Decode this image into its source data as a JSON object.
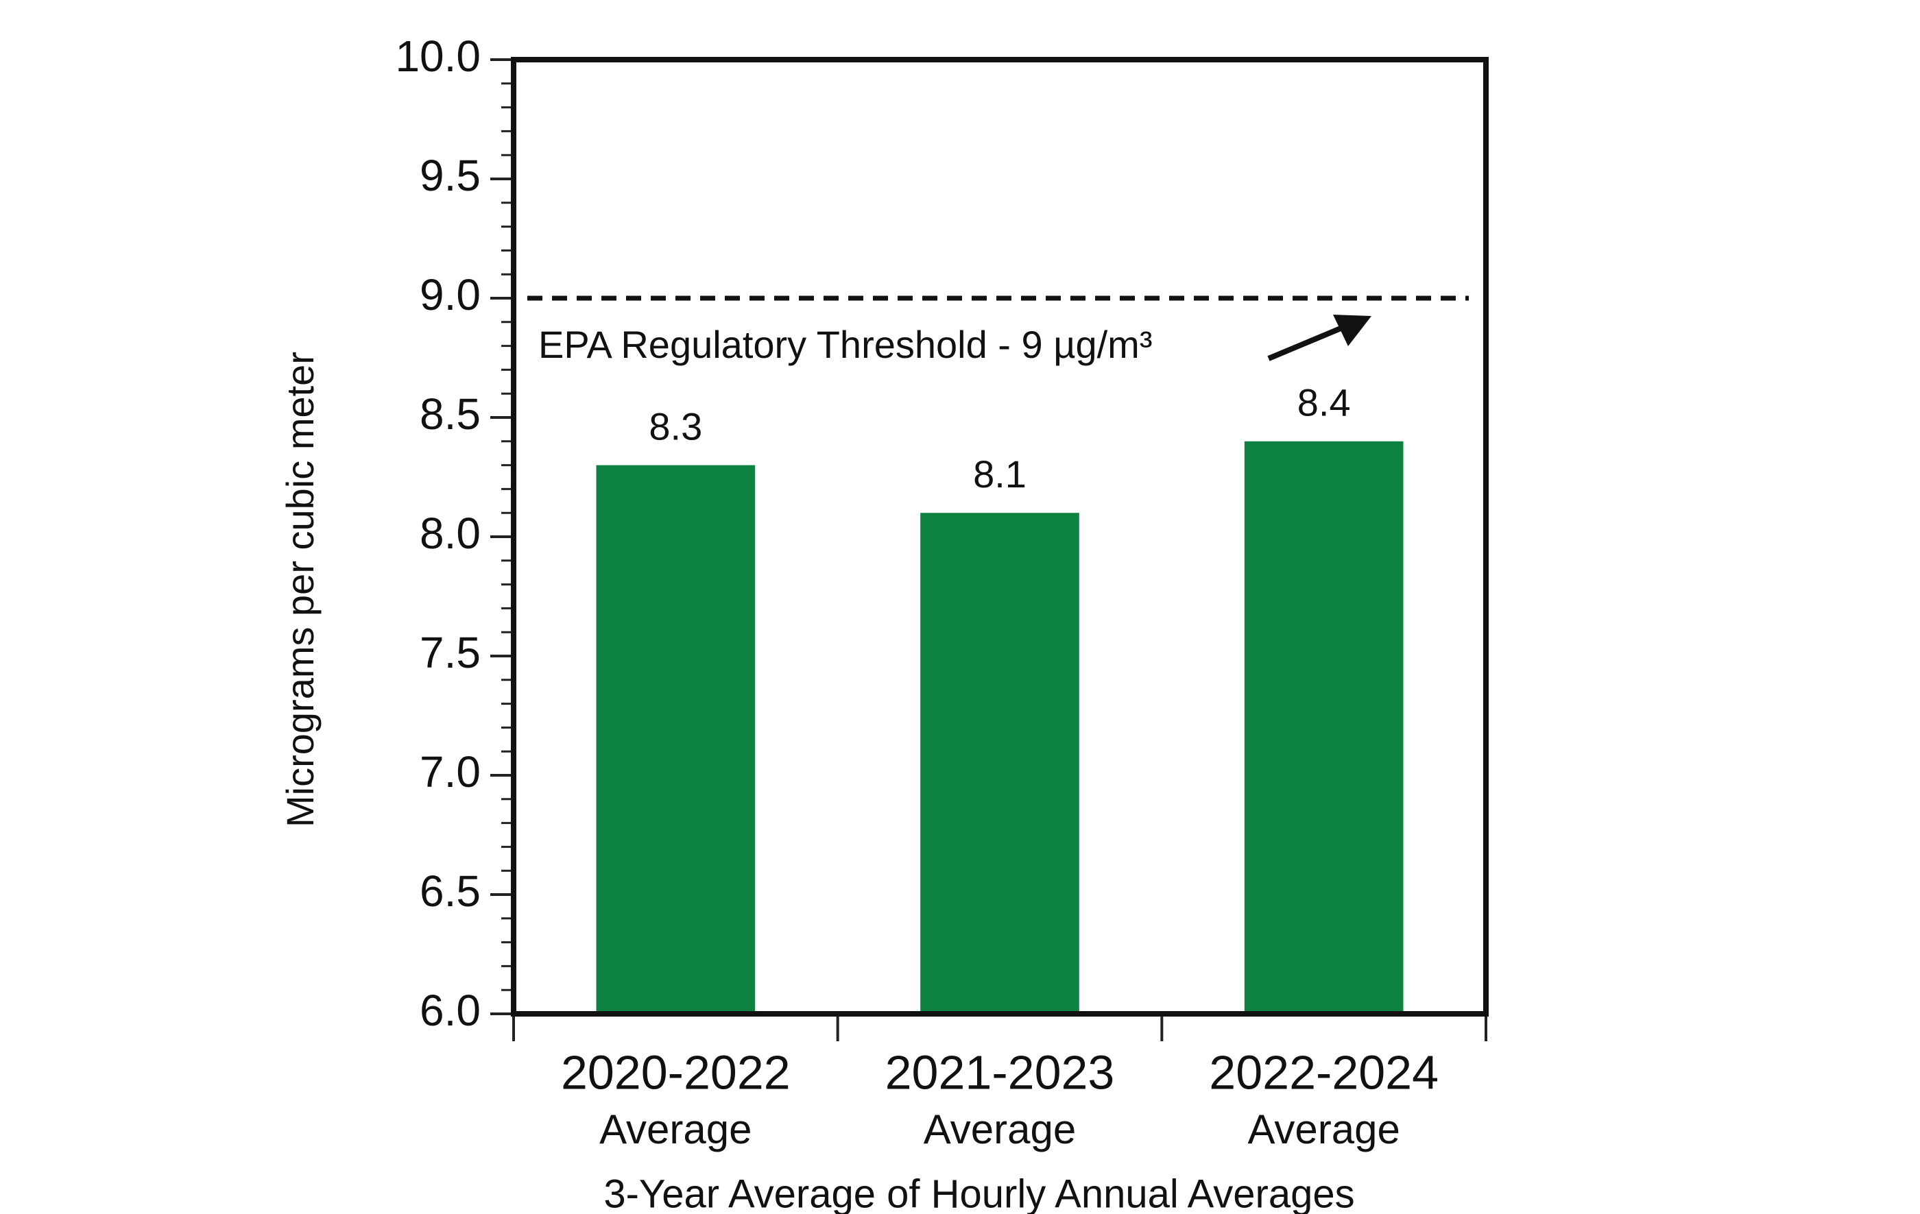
{
  "chart_data": {
    "type": "bar",
    "y_axis_label": "Micrograms per cubic meter",
    "x_axis_label": "3-Year Average of Hourly Annual Averages",
    "categories": [
      [
        "2020-2022",
        "Average"
      ],
      [
        "2021-2023",
        "Average"
      ],
      [
        "2022-2024",
        "Average"
      ]
    ],
    "values": [
      8.3,
      8.1,
      8.4
    ],
    "color": "#0e8241",
    "ylim": [
      6,
      10
    ],
    "yticks": [
      {
        "value": 6,
        "label": "6.0"
      },
      6.5,
      {
        "value": 7,
        "label": "7.0"
      },
      7.5,
      {
        "value": 8,
        "label": "8.0"
      },
      8.5,
      {
        "value": 9,
        "label": "9.0"
      },
      9.5,
      {
        "value": 10,
        "label": "10.0"
      }
    ],
    "yminorticks": [
      6.1,
      6.2,
      6.3,
      6.4,
      6.6,
      6.7,
      6.8,
      6.9,
      7.1,
      7.2,
      7.3,
      7.4,
      7.6,
      7.7,
      7.8,
      7.9,
      8.1,
      8.2,
      8.3,
      8.4,
      8.6,
      8.7,
      8.8,
      8.9,
      9.1,
      9.2,
      9.3,
      9.4,
      9.6,
      9.7,
      9.8,
      9.9
    ],
    "threshold": {
      "value": 9,
      "label": "EPA Regulatory Threshold - 9 µg/m³"
    },
    "grid": false
  }
}
